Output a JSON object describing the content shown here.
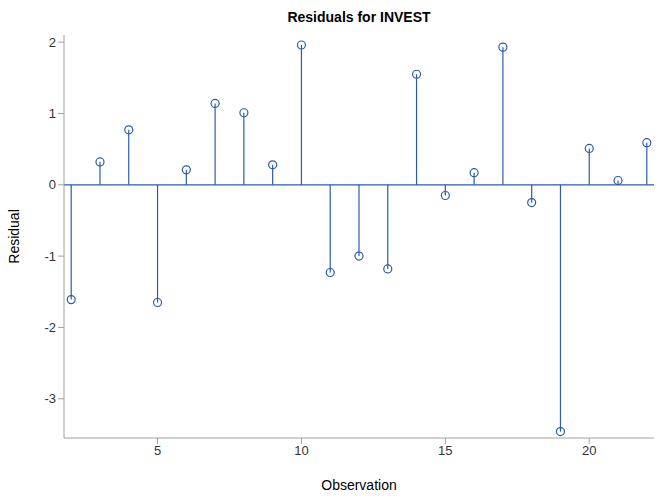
{
  "chart_data": {
    "type": "stem",
    "title": "Residuals for INVEST",
    "xlabel": "Observation",
    "ylabel": "Residual",
    "x": [
      2,
      3,
      4,
      5,
      6,
      7,
      8,
      9,
      10,
      11,
      12,
      13,
      14,
      15,
      16,
      17,
      18,
      19,
      20,
      21,
      22
    ],
    "values": [
      -1.61,
      0.32,
      0.77,
      -1.65,
      0.21,
      1.14,
      1.01,
      0.28,
      1.96,
      -1.23,
      -1.0,
      -1.18,
      1.55,
      -0.15,
      0.17,
      1.93,
      -0.25,
      -3.46,
      0.51,
      0.06,
      0.59
    ],
    "color": "#2a5caa",
    "marker": "circle",
    "xlim": [
      1.75,
      22.25
    ],
    "ylim": [
      -3.55,
      2.1
    ],
    "xticks": [
      5,
      10,
      15,
      20
    ],
    "yticks": [
      -3,
      -2,
      -1,
      0,
      1,
      2
    ],
    "grid": false
  }
}
